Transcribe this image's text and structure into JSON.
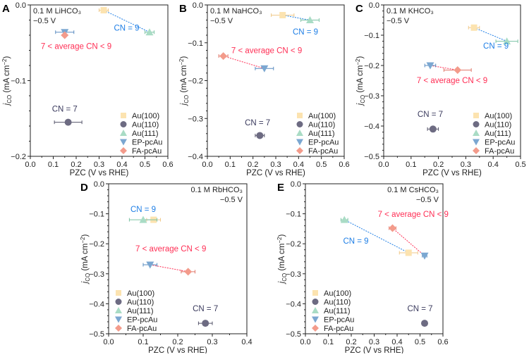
{
  "series_styles": [
    {
      "name": "Au(100)",
      "marker": "square",
      "color": "#fce3b0",
      "err": "#f0c98a"
    },
    {
      "name": "Au(110)",
      "marker": "circle",
      "color": "#6d6b82",
      "err": "#55546a"
    },
    {
      "name": "Au(111)",
      "marker": "triangle-up",
      "color": "#a9dcc5",
      "err": "#7cc3a4"
    },
    {
      "name": "EP-pcAu",
      "marker": "triangle-down",
      "color": "#7ba7d1",
      "err": "#5a8cc0"
    },
    {
      "name": "FA-pcAu",
      "marker": "diamond",
      "color": "#f39b8b",
      "err": "#e0776a"
    }
  ],
  "colors": {
    "cn9": "#1f7fe6",
    "cn_avg": "#ff2f55",
    "cn7": "#3b3b5e",
    "axis": "#222222"
  },
  "chart_data": [
    {
      "panel": "A",
      "type": "scatter",
      "info": [
        "0.1 M LiHCO₃",
        "−0.5 V"
      ],
      "xlabel": "PZC (V vs RHE)",
      "ylabel": [
        "j",
        "CO",
        " (mA cm",
        "−2",
        ")"
      ],
      "xlim": [
        0,
        0.6
      ],
      "ylim": [
        -0.2,
        0
      ],
      "xticks": [
        0,
        0.1,
        0.2,
        0.3,
        0.4,
        0.5,
        0.6
      ],
      "yticks": [
        0,
        -0.1,
        -0.2
      ],
      "xtick_labels": [
        "0.0",
        "0.1",
        "0.2",
        "0.3",
        "0.4",
        "0.5",
        "0.6"
      ],
      "ytick_labels": [
        "0.0",
        "−0.1",
        "−0.2"
      ],
      "legend": "bottom-right",
      "points": [
        {
          "series": "Au(100)",
          "x": 0.32,
          "y": -0.007,
          "xerr": 0.02
        },
        {
          "series": "Au(110)",
          "x": 0.165,
          "y": -0.155,
          "xerr": 0.06
        },
        {
          "series": "Au(111)",
          "x": 0.52,
          "y": -0.036,
          "xerr": 0.02
        },
        {
          "series": "EP-pcAu",
          "x": 0.15,
          "y": -0.036,
          "xerr": 0.04
        },
        {
          "series": "FA-pcAu",
          "x": 0.15,
          "y": -0.04,
          "xerr": 0.0
        }
      ],
      "annotations": [
        "CN = 9",
        "7 < average CN < 9",
        "CN = 7"
      ]
    },
    {
      "panel": "B",
      "type": "scatter",
      "info": [
        "0.1 M NaHCO₃",
        "−0.5 V"
      ],
      "xlabel": "PZC (V vs RHE)",
      "ylabel": [
        "j",
        "CO",
        " (mA cm",
        "−2",
        ")"
      ],
      "xlim": [
        0,
        0.6
      ],
      "ylim": [
        -0.4,
        0
      ],
      "xticks": [
        0,
        0.1,
        0.2,
        0.3,
        0.4,
        0.5,
        0.6
      ],
      "yticks": [
        0,
        -0.1,
        -0.2,
        -0.3,
        -0.4
      ],
      "xtick_labels": [
        "0.0",
        "0.1",
        "0.2",
        "0.3",
        "0.4",
        "0.5",
        "0.6"
      ],
      "ytick_labels": [
        "0.0",
        "−0.1",
        "−0.2",
        "−0.3",
        "−0.4"
      ],
      "legend": "bottom-right",
      "points": [
        {
          "series": "Au(100)",
          "x": 0.33,
          "y": -0.027,
          "xerr": 0.05
        },
        {
          "series": "Au(110)",
          "x": 0.23,
          "y": -0.345,
          "xerr": 0.02
        },
        {
          "series": "Au(111)",
          "x": 0.45,
          "y": -0.04,
          "xerr": 0.04
        },
        {
          "series": "EP-pcAu",
          "x": 0.25,
          "y": -0.168,
          "xerr": 0.04
        },
        {
          "series": "FA-pcAu",
          "x": 0.07,
          "y": -0.135,
          "xerr": 0.02
        }
      ],
      "annotations": [
        "CN = 9",
        "7 < average CN < 9",
        "CN = 7"
      ]
    },
    {
      "panel": "C",
      "type": "scatter",
      "info": [
        "0.1 M KHCO₃",
        "−0.5 V"
      ],
      "xlabel": "PZC (V vs RHE)",
      "ylabel": [
        "j",
        "CO",
        " (mA cm",
        "−2",
        ")"
      ],
      "xlim": [
        0,
        0.5
      ],
      "ylim": [
        -0.5,
        0
      ],
      "xticks": [
        0,
        0.1,
        0.2,
        0.3,
        0.4,
        0.5
      ],
      "yticks": [
        0,
        -0.1,
        -0.2,
        -0.3,
        -0.4,
        -0.5
      ],
      "xtick_labels": [
        "0.0",
        "0.1",
        "0.2",
        "0.3",
        "0.4",
        "0.5"
      ],
      "ytick_labels": [
        "0.0",
        "−0.1",
        "−0.2",
        "−0.3",
        "−0.4",
        "−0.5"
      ],
      "legend": "bottom-right",
      "points": [
        {
          "series": "Au(100)",
          "x": 0.33,
          "y": -0.075,
          "xerr": 0.02
        },
        {
          "series": "Au(110)",
          "x": 0.18,
          "y": -0.41,
          "xerr": 0.02
        },
        {
          "series": "Au(111)",
          "x": 0.45,
          "y": -0.12,
          "xerr": 0.04
        },
        {
          "series": "EP-pcAu",
          "x": 0.17,
          "y": -0.2,
          "xerr": 0.02
        },
        {
          "series": "FA-pcAu",
          "x": 0.27,
          "y": -0.215,
          "xerr": 0.05
        }
      ],
      "annotations": [
        "CN = 9",
        "7 < average CN < 9",
        "CN = 7"
      ]
    },
    {
      "panel": "D",
      "type": "scatter",
      "info": [
        "0.1 M RbHCO₃",
        "−0.5 V"
      ],
      "xlabel": "PZC (V vs RHE)",
      "ylabel": [
        "j",
        "CO",
        " (mA cm",
        "−2",
        ")"
      ],
      "xlim": [
        0,
        0.4
      ],
      "ylim": [
        -0.5,
        0
      ],
      "xticks": [
        0,
        0.1,
        0.2,
        0.3,
        0.4
      ],
      "yticks": [
        0,
        -0.1,
        -0.2,
        -0.3,
        -0.4,
        -0.5
      ],
      "xtick_labels": [
        "0.0",
        "0.1",
        "0.2",
        "0.3",
        "0.4"
      ],
      "ytick_labels": [
        "0.0",
        "−0.1",
        "−0.2",
        "−0.3",
        "−0.4",
        "−0.5"
      ],
      "legend": "bottom-left",
      "points": [
        {
          "series": "Au(100)",
          "x": 0.13,
          "y": -0.12,
          "xerr": 0.02
        },
        {
          "series": "Au(110)",
          "x": 0.28,
          "y": -0.465,
          "xerr": 0.02
        },
        {
          "series": "Au(111)",
          "x": 0.1,
          "y": -0.12,
          "xerr": 0.04
        },
        {
          "series": "EP-pcAu",
          "x": 0.12,
          "y": -0.27,
          "xerr": 0.02
        },
        {
          "series": "FA-pcAu",
          "x": 0.23,
          "y": -0.293,
          "xerr": 0.02
        }
      ],
      "annotations": [
        "CN = 9",
        "7 < average CN < 9",
        "CN = 7"
      ]
    },
    {
      "panel": "E",
      "type": "scatter",
      "info": [
        "0.1 M CsHCO₃",
        "−0.5 V"
      ],
      "xlabel": "PZC (V vs RHE)",
      "ylabel": [
        "j",
        "CO",
        " (mA cm",
        "−2",
        ")"
      ],
      "xlim": [
        0,
        0.6
      ],
      "ylim": [
        -0.5,
        0
      ],
      "xticks": [
        0,
        0.1,
        0.2,
        0.3,
        0.4,
        0.5,
        0.6
      ],
      "yticks": [
        0,
        -0.1,
        -0.2,
        -0.3,
        -0.4,
        -0.5
      ],
      "xtick_labels": [
        "0.0",
        "0.1",
        "0.2",
        "0.3",
        "0.4",
        "0.5",
        "0.6"
      ],
      "ytick_labels": [
        "0.0",
        "−0.1",
        "−0.2",
        "−0.3",
        "−0.4",
        "−0.5"
      ],
      "legend": "bottom-left",
      "points": [
        {
          "series": "Au(100)",
          "x": 0.45,
          "y": -0.23,
          "xerr": 0.04
        },
        {
          "series": "Au(110)",
          "x": 0.52,
          "y": -0.465,
          "xerr": 0.01
        },
        {
          "series": "Au(111)",
          "x": 0.17,
          "y": -0.12,
          "xerr": 0.015
        },
        {
          "series": "EP-pcAu",
          "x": 0.52,
          "y": -0.24,
          "xerr": 0.01
        },
        {
          "series": "FA-pcAu",
          "x": 0.38,
          "y": -0.148,
          "xerr": 0.015
        }
      ],
      "annotations": [
        "CN = 9",
        "7 < average CN < 9",
        "CN = 7"
      ]
    }
  ]
}
